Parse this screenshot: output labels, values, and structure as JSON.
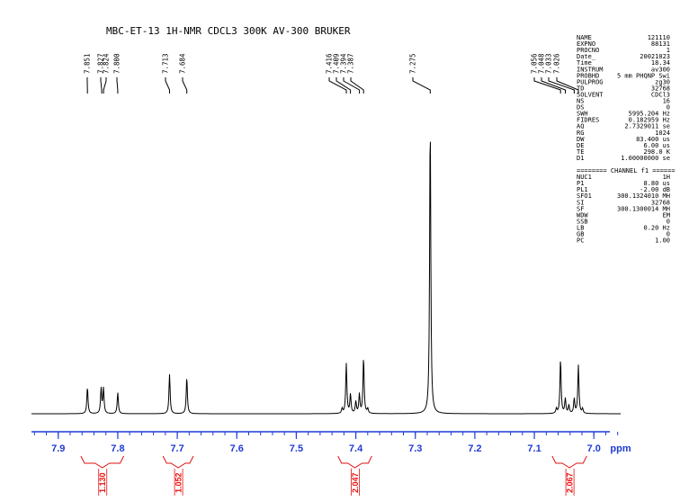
{
  "title": "MBC-ET-13 1H-NMR CDCL3 300K AV-300 BRUKER",
  "params": [
    [
      "NAME",
      "121110"
    ],
    [
      "EXPNO",
      "88131"
    ],
    [
      "PROCNO",
      "1"
    ],
    [
      "Date_",
      "20021023"
    ],
    [
      "Time",
      "18.34"
    ],
    [
      "INSTRUM",
      "av300"
    ],
    [
      "PROBHD",
      "5 mm PHQNP Swi"
    ],
    [
      "PULPROG",
      "zg30"
    ],
    [
      "TD",
      "32768"
    ],
    [
      "SOLVENT",
      "CDCl3"
    ],
    [
      "NS",
      "16"
    ],
    [
      "DS",
      "0"
    ],
    [
      "SWH",
      "5995.204 Hz"
    ],
    [
      "FIDRES",
      "0.182959 Hz"
    ],
    [
      "AQ",
      "2.7329011 se"
    ],
    [
      "RG",
      "1024"
    ],
    [
      "DW",
      "83.400 us"
    ],
    [
      "DE",
      "6.00 us"
    ],
    [
      "TE",
      "298.0 K"
    ],
    [
      "D1",
      "1.00000000 se"
    ]
  ],
  "channel_header": "======== CHANNEL f1 ======",
  "channel_params": [
    [
      "NUC1",
      "1H"
    ],
    [
      "P1",
      "8.80 us"
    ],
    [
      "PL1",
      "-2.00 dB"
    ],
    [
      "SFO1",
      "300.1324010 MH"
    ],
    [
      "SI",
      "32768"
    ],
    [
      "SF",
      "300.1300014 MH"
    ],
    [
      "WDW",
      "EM"
    ],
    [
      "SSB",
      "0"
    ],
    [
      "LB",
      "0.20 Hz"
    ],
    [
      "GB",
      "0"
    ],
    [
      "PC",
      "1.00"
    ]
  ],
  "chart_data": {
    "type": "line",
    "xlabel": "ppm",
    "xlim": [
      7.945,
      6.955
    ],
    "x_reversed": true,
    "x_ticks": [
      "7.9",
      "7.8",
      "7.7",
      "7.6",
      "7.5",
      "7.4",
      "7.3",
      "7.2",
      "7.1",
      "7.0"
    ],
    "peak_labels": [
      "7.851",
      "7.827",
      "7.824",
      "7.800",
      "7.713",
      "7.684",
      "7.416",
      "7.409",
      "7.394",
      "7.387",
      "7.275",
      "7.056",
      "7.048",
      "7.033",
      "7.026"
    ],
    "peaks": [
      {
        "ppm": 7.851,
        "height": 0.09
      },
      {
        "ppm": 7.828,
        "height": 0.085
      },
      {
        "ppm": 7.824,
        "height": 0.085
      },
      {
        "ppm": 7.8,
        "height": 0.072
      },
      {
        "ppm": 7.713,
        "height": 0.134
      },
      {
        "ppm": 7.684,
        "height": 0.124
      },
      {
        "ppm": 7.423,
        "height": 0.016
      },
      {
        "ppm": 7.416,
        "height": 0.17
      },
      {
        "ppm": 7.409,
        "height": 0.065
      },
      {
        "ppm": 7.4,
        "height": 0.04
      },
      {
        "ppm": 7.394,
        "height": 0.065
      },
      {
        "ppm": 7.387,
        "height": 0.19
      },
      {
        "ppm": 7.38,
        "height": 0.016
      },
      {
        "ppm": 7.275,
        "height": 1.0
      },
      {
        "ppm": 7.063,
        "height": 0.016
      },
      {
        "ppm": 7.056,
        "height": 0.185
      },
      {
        "ppm": 7.048,
        "height": 0.05
      },
      {
        "ppm": 7.042,
        "height": 0.028
      },
      {
        "ppm": 7.033,
        "height": 0.05
      },
      {
        "ppm": 7.026,
        "height": 0.165
      },
      {
        "ppm": 7.019,
        "height": 0.016
      }
    ],
    "integrals": [
      {
        "label": "1.130",
        "from": 7.862,
        "to": 7.79
      },
      {
        "label": "1.052",
        "from": 7.724,
        "to": 7.673
      },
      {
        "label": "2.047",
        "from": 7.43,
        "to": 7.373
      },
      {
        "label": "2.067",
        "from": 7.07,
        "to": 7.012
      }
    ],
    "colors": {
      "spectrum": "#000000",
      "axis": "#1f3bd6",
      "integral": "#e11111"
    }
  }
}
